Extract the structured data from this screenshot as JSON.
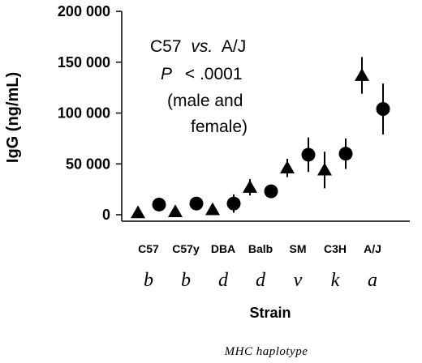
{
  "chart_data": {
    "type": "scatter",
    "title": "",
    "ylabel": "IgG (ng/mL)",
    "xlabel": "Strain",
    "footer": "MHC haplotype",
    "ylim": [
      0,
      200000
    ],
    "yticks": [
      0,
      50000,
      100000,
      150000,
      200000
    ],
    "ytick_labels": [
      "0",
      "50 000",
      "100 000",
      "150 000",
      "200 000"
    ],
    "categories": [
      {
        "strain": "C57",
        "haplotype": "b"
      },
      {
        "strain": "C57y",
        "haplotype": "b"
      },
      {
        "strain": "DBA",
        "haplotype": "d"
      },
      {
        "strain": "Balb",
        "haplotype": "d"
      },
      {
        "strain": "SM",
        "haplotype": "v"
      },
      {
        "strain": "C3H",
        "haplotype": "k"
      },
      {
        "strain": "A/J",
        "haplotype": "a"
      }
    ],
    "series": [
      {
        "marker": "triangle",
        "points": [
          {
            "category": "C57",
            "y": 2000,
            "err": 0
          },
          {
            "category": "C57y",
            "y": 3000,
            "err": 0
          },
          {
            "category": "DBA",
            "y": 5000,
            "err": 0
          },
          {
            "category": "Balb",
            "y": 27000,
            "err": 8000
          },
          {
            "category": "SM",
            "y": 46000,
            "err": 9000
          },
          {
            "category": "C3H",
            "y": 44000,
            "err": 18000
          },
          {
            "category": "A/J",
            "y": 137000,
            "err": 18000
          }
        ]
      },
      {
        "marker": "circle",
        "points": [
          {
            "category": "C57",
            "y": 10000,
            "err": 0
          },
          {
            "category": "C57y",
            "y": 11000,
            "err": 0
          },
          {
            "category": "DBA",
            "y": 11000,
            "err": 9000
          },
          {
            "category": "Balb",
            "y": 23000,
            "err": 0
          },
          {
            "category": "SM",
            "y": 59000,
            "err": 17000
          },
          {
            "category": "C3H",
            "y": 60000,
            "err": 15000
          },
          {
            "category": "A/J",
            "y": 104000,
            "err": 25000
          }
        ]
      }
    ],
    "annotation": {
      "line1_a": "C57",
      "line1_vs": "vs.",
      "line1_b": "A/J",
      "line2_p": "P",
      "line2_rest": "< .0001",
      "line3": "(male and",
      "line4": "female)"
    }
  }
}
